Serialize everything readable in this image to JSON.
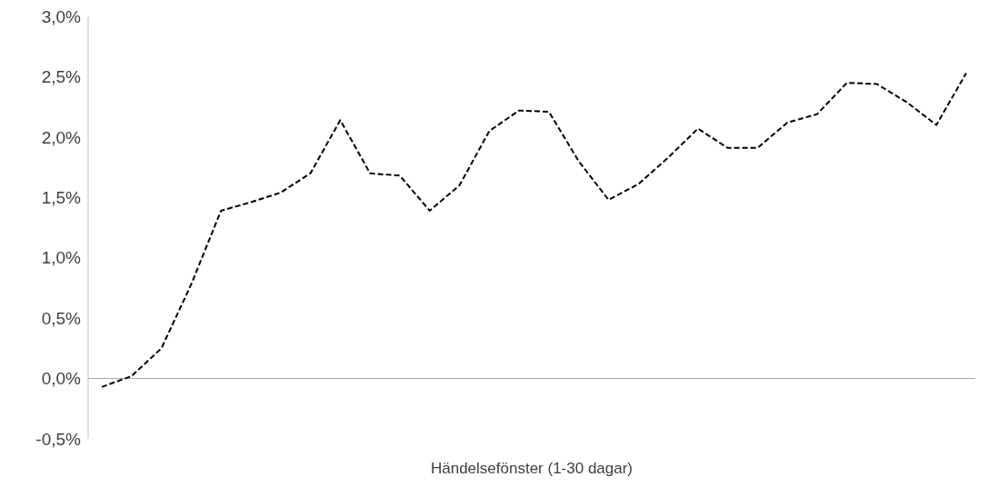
{
  "chart_data": {
    "type": "line",
    "xlabel": "Händelsefönster (1-30 dagar)",
    "categories": [
      null,
      null,
      null,
      null,
      null,
      null,
      null,
      null,
      null,
      null,
      null,
      null,
      null,
      null,
      null,
      null,
      null,
      null,
      null,
      null,
      null,
      null,
      null,
      null,
      null,
      null,
      null,
      null,
      null,
      null
    ],
    "series": [
      {
        "color": "#000000",
        "values": [
          -0.07,
          0.02,
          0.25,
          0.78,
          1.39,
          1.46,
          1.54,
          1.7,
          2.14,
          1.7,
          1.68,
          1.39,
          1.6,
          2.05,
          2.22,
          2.21,
          1.8,
          1.48,
          1.61,
          1.83,
          2.07,
          1.91,
          1.91,
          2.12,
          2.19,
          2.45,
          2.44,
          2.29,
          2.1,
          2.53
        ]
      }
    ],
    "ylim": [
      -0.5,
      3
    ],
    "yticks": [
      {
        "value": -0.5,
        "label": "-0,5%"
      },
      {
        "value": 0,
        "label": "0,0%"
      },
      {
        "value": 0.5,
        "label": "0,5%"
      },
      {
        "value": 1,
        "label": "1,0%"
      },
      {
        "value": 1.5,
        "label": "1,5%"
      },
      {
        "value": 2,
        "label": "2,0%"
      },
      {
        "value": 2.5,
        "label": "2,5%"
      },
      {
        "value": 3,
        "label": "3,0%"
      }
    ],
    "legend": false,
    "marker": "none",
    "line_style": "dashed",
    "tick_labels": "y"
  }
}
